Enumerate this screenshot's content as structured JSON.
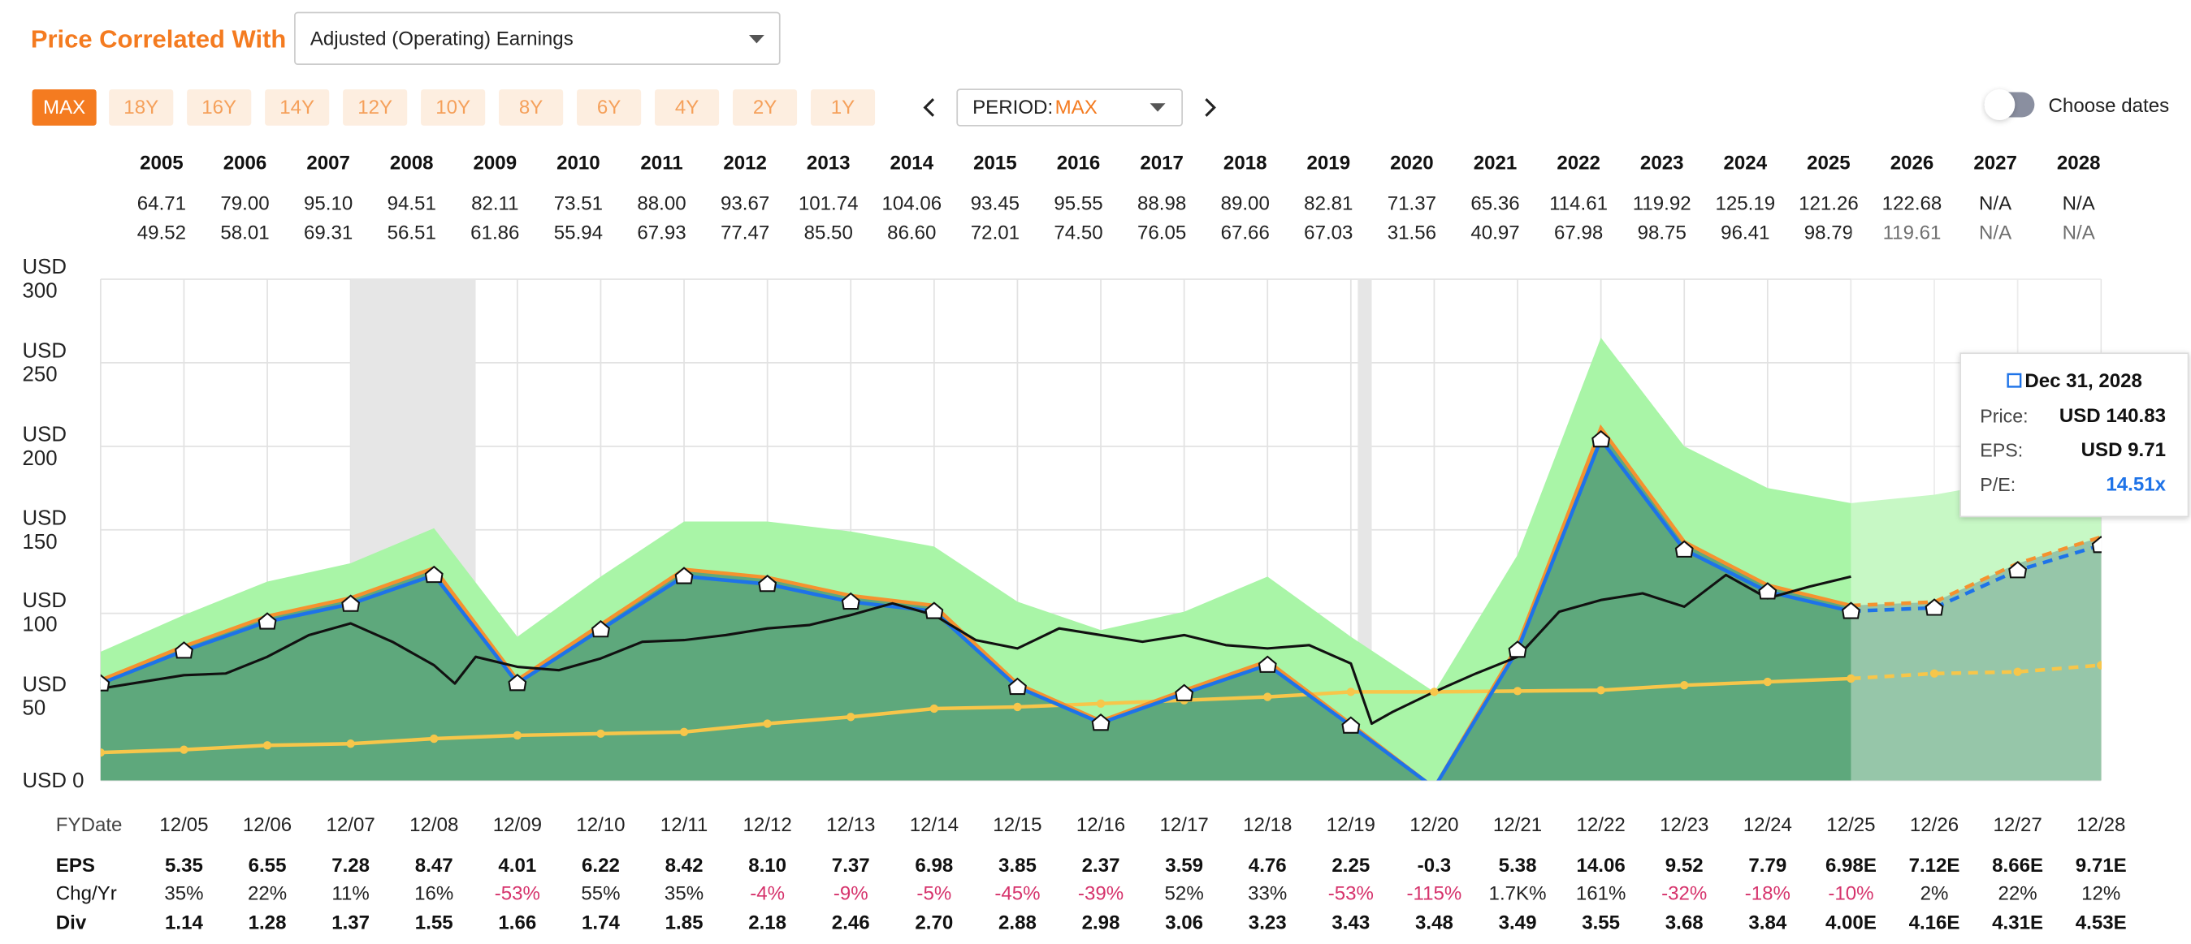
{
  "header": {
    "title": "Price Correlated With",
    "selector": "Adjusted (Operating) Earnings"
  },
  "periods": {
    "buttons": [
      "MAX",
      "18Y",
      "16Y",
      "14Y",
      "12Y",
      "10Y",
      "8Y",
      "6Y",
      "4Y",
      "2Y",
      "1Y"
    ],
    "active": "MAX",
    "select_label": "PERIOD:",
    "select_value": "MAX",
    "choose_dates": "Choose dates"
  },
  "high_low": {
    "years": [
      "2005",
      "2006",
      "2007",
      "2008",
      "2009",
      "2010",
      "2011",
      "2012",
      "2013",
      "2014",
      "2015",
      "2016",
      "2017",
      "2018",
      "2019",
      "2020",
      "2021",
      "2022",
      "2023",
      "2024",
      "2025",
      "2026",
      "2027",
      "2028"
    ],
    "high": [
      "64.71",
      "79.00",
      "95.10",
      "94.51",
      "82.11",
      "73.51",
      "88.00",
      "93.67",
      "101.74",
      "104.06",
      "93.45",
      "95.55",
      "88.98",
      "89.00",
      "82.81",
      "71.37",
      "65.36",
      "114.61",
      "119.92",
      "125.19",
      "121.26",
      "122.68",
      "N/A",
      "N/A"
    ],
    "low": [
      "49.52",
      "58.01",
      "69.31",
      "56.51",
      "61.86",
      "55.94",
      "67.93",
      "77.47",
      "85.50",
      "86.60",
      "72.01",
      "74.50",
      "76.05",
      "67.66",
      "67.03",
      "31.56",
      "40.97",
      "67.98",
      "98.75",
      "96.41",
      "98.79",
      "119.61",
      "N/A",
      "N/A"
    ]
  },
  "chart_data": {
    "type": "line",
    "categories": [
      null,
      "12/05",
      "12/06",
      "12/07",
      "12/08",
      "12/09",
      "12/10",
      "12/11",
      "12/12",
      "12/13",
      "12/14",
      "12/15",
      "12/16",
      "12/17",
      "12/18",
      "12/19",
      "12/20",
      "12/21",
      "12/22",
      "12/23",
      "12/24",
      "12/25",
      "12/26",
      "12/27",
      "12/28"
    ],
    "ylim": [
      0,
      300
    ],
    "yticks": [
      {
        "value": 0,
        "label": "USD 0"
      },
      {
        "value": 50,
        "label": "USD 50"
      },
      {
        "value": 100,
        "label": "USD 100"
      },
      {
        "value": 150,
        "label": "USD 150"
      },
      {
        "value": 200,
        "label": "USD 200"
      },
      {
        "value": 250,
        "label": "USD 250"
      },
      {
        "value": 300,
        "label": "USD 300"
      }
    ],
    "grid": true,
    "forecast_start": "12/25",
    "shaded_periods": [
      {
        "start": "12/07",
        "end": "06/09"
      },
      {
        "start": "01/20",
        "end": "03/20"
      }
    ],
    "series": [
      {
        "style": "area",
        "color": "#a9f5a7",
        "values": [
          77,
          99,
          119,
          130,
          151,
          86,
          122,
          155,
          155,
          149,
          140,
          107,
          90,
          101,
          122,
          86,
          53,
          135,
          265,
          200,
          175,
          166,
          171,
          180,
          190
        ]
      },
      {
        "style": "area",
        "color": "#5ea87c",
        "values": [
          60,
          80.3,
          98.3,
          109.2,
          127.1,
          60.2,
          93.3,
          126.3,
          121.5,
          110.6,
          104.7,
          57.8,
          35.6,
          53.9,
          71.4,
          33.8,
          -4.5,
          80.7,
          210.9,
          142.8,
          116.9,
          104.7,
          106.8,
          129.9,
          145.7
        ]
      },
      {
        "style": "line",
        "color": "#f7c64a",
        "marker": "dot",
        "values": [
          16.7,
          18.4,
          21,
          22,
          25,
          27,
          28,
          29,
          34,
          38,
          43,
          44,
          46,
          48,
          50,
          53,
          53,
          53.5,
          54,
          57,
          59,
          61,
          64,
          65,
          69
        ]
      },
      {
        "style": "line",
        "color": "#f5922f",
        "values": [
          60,
          80.3,
          98.3,
          109.2,
          127.1,
          60.2,
          93.3,
          126.3,
          121.5,
          110.6,
          104.7,
          57.8,
          35.6,
          53.9,
          71.4,
          33.8,
          -4.5,
          80.7,
          210.9,
          142.8,
          116.9,
          104.7,
          106.8,
          129.9,
          145.7
        ]
      },
      {
        "style": "line",
        "color": "#1e73e8",
        "marker": "house",
        "values": [
          58,
          77.6,
          95,
          105.6,
          122.9,
          58.2,
          90.3,
          122.2,
          117.5,
          106.9,
          101.3,
          55.9,
          34.4,
          52.1,
          69.1,
          32.7,
          -4.4,
          78.1,
          204,
          138.1,
          113,
          101.3,
          103.3,
          125.7,
          140.8
        ]
      }
    ],
    "price": {
      "color": "#111111",
      "x": [
        "12/04",
        "06/05",
        "12/05",
        "06/06",
        "12/06",
        "06/07",
        "12/07",
        "06/08",
        "12/08",
        "03/09",
        "06/09",
        "12/09",
        "06/10",
        "12/10",
        "06/11",
        "12/11",
        "06/12",
        "12/12",
        "06/13",
        "12/13",
        "06/14",
        "12/14",
        "06/15",
        "12/15",
        "06/16",
        "12/16",
        "06/17",
        "12/17",
        "06/18",
        "12/18",
        "06/19",
        "12/19",
        "03/20",
        "06/20",
        "12/20",
        "06/21",
        "12/21",
        "06/22",
        "12/22",
        "06/23",
        "12/23",
        "06/24",
        "12/24",
        "06/25",
        "12/25"
      ],
      "values": [
        55,
        59,
        63,
        64,
        74,
        87,
        94,
        83,
        69,
        58,
        74,
        68,
        66,
        73,
        83,
        84,
        87,
        91,
        93,
        99,
        106,
        99,
        84,
        79,
        91,
        87,
        83,
        87,
        81,
        79,
        81,
        70,
        34,
        41,
        53,
        64,
        74,
        101,
        108,
        112,
        104,
        123,
        109,
        116,
        122
      ]
    },
    "tooltip": {
      "date": "Dec 31, 2028",
      "rows": [
        {
          "label": "Price:",
          "value": "USD 140.83"
        },
        {
          "label": "EPS:",
          "value": "USD 9.71"
        },
        {
          "label": "P/E:",
          "value": "14.51x",
          "color": "#1e73e8"
        }
      ]
    }
  },
  "fy_table": {
    "row_labels": [
      "FYDate",
      "EPS",
      "Chg/Yr",
      "Div"
    ],
    "eps": [
      "5.35",
      "6.55",
      "7.28",
      "8.47",
      "4.01",
      "6.22",
      "8.42",
      "8.10",
      "7.37",
      "6.98",
      "3.85",
      "2.37",
      "3.59",
      "4.76",
      "2.25",
      "-0.3",
      "5.38",
      "14.06",
      "9.52",
      "7.79",
      "6.98E",
      "7.12E",
      "8.66E",
      "9.71E"
    ],
    "chg": [
      "35%",
      "22%",
      "11%",
      "16%",
      "-53%",
      "55%",
      "35%",
      "-4%",
      "-9%",
      "-5%",
      "-45%",
      "-39%",
      "52%",
      "33%",
      "-53%",
      "-115%",
      "1.7K%",
      "161%",
      "-32%",
      "-18%",
      "-10%",
      "2%",
      "22%",
      "12%"
    ],
    "div": [
      "1.14",
      "1.28",
      "1.37",
      "1.55",
      "1.66",
      "1.74",
      "1.85",
      "2.18",
      "2.46",
      "2.70",
      "2.88",
      "2.98",
      "3.06",
      "3.23",
      "3.43",
      "3.48",
      "3.49",
      "3.55",
      "3.68",
      "3.84",
      "4.00E",
      "4.16E",
      "4.31E",
      "4.53E"
    ]
  }
}
